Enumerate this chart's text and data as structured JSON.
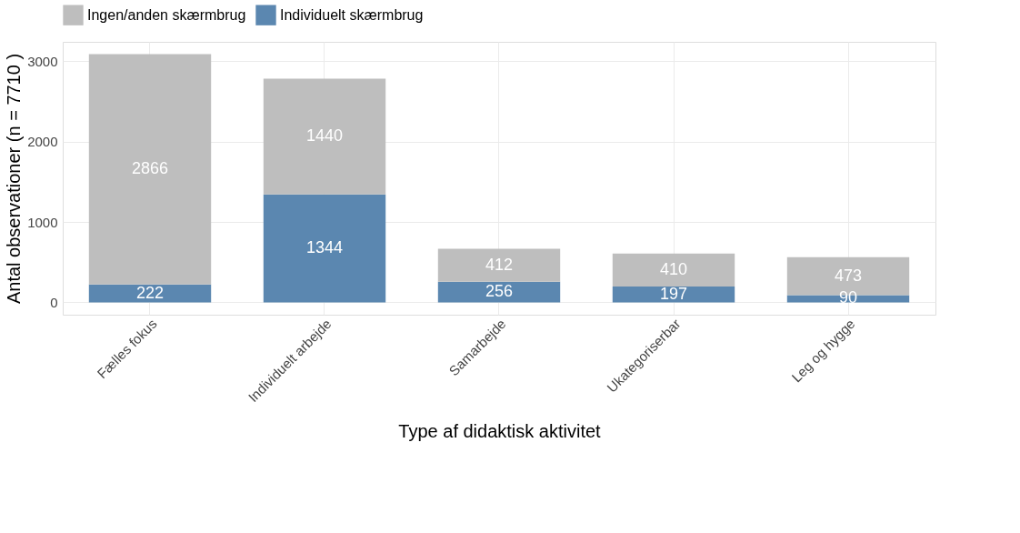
{
  "chart_data": {
    "type": "bar",
    "stacked": true,
    "xlabel": "Type af didaktisk aktivitet",
    "ylabel": "Antal observationer (n = 7710 )",
    "categories": [
      "Fælles fokus",
      "Individuelt arbejde",
      "Samarbejde",
      "Ukategoriserbar",
      "Leg og hygge"
    ],
    "series": [
      {
        "name": "Individuelt skærmbrug",
        "color": "#5b87b0",
        "values": [
          222,
          1344,
          256,
          197,
          90
        ]
      },
      {
        "name": "Ingen/anden skærmbrug",
        "color": "#bebebe",
        "values": [
          2866,
          1440,
          412,
          410,
          473
        ]
      }
    ],
    "ylim": [
      -154,
      3242
    ],
    "yticks": [
      0,
      1000,
      2000,
      3000
    ],
    "grid": true,
    "legend": "top",
    "data_labels": true
  }
}
